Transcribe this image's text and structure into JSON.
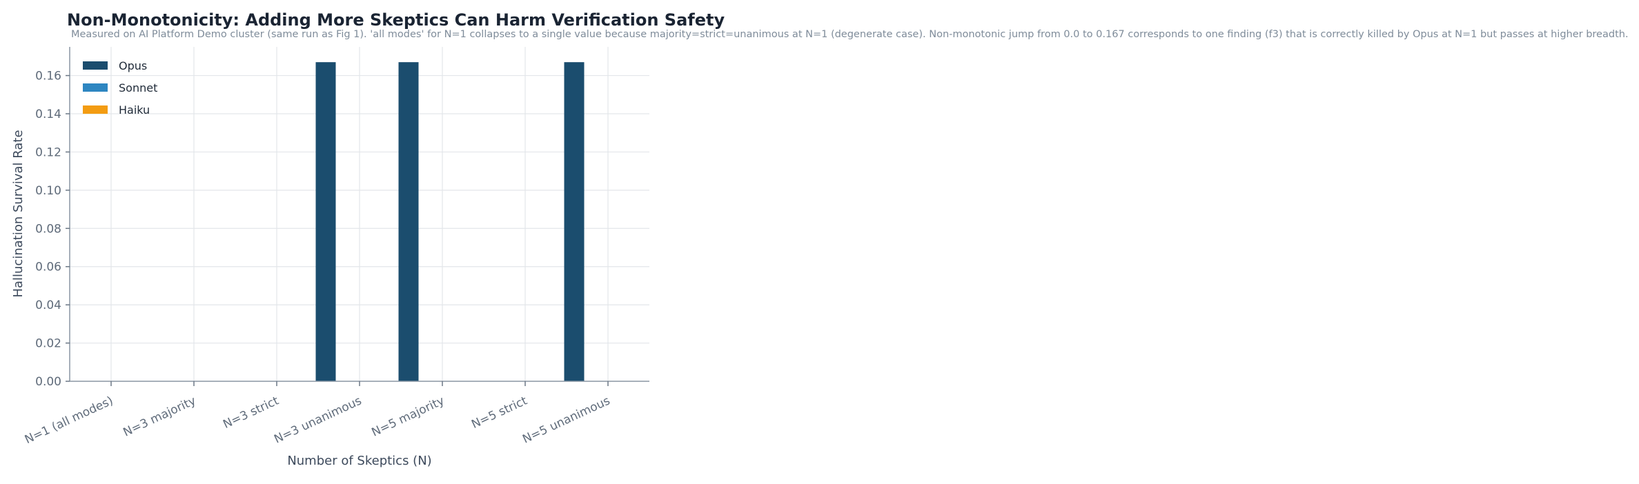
{
  "chart_data": {
    "type": "bar",
    "title": "Non-Monotonicity: Adding More Skeptics Can Harm Verification Safety",
    "subtitle": "Measured on AI Platform Demo cluster (same run as Fig 1). 'all modes' for N=1 collapses to a single value because majority=strict=unanimous at N=1 (degenerate case). Non-monotonic jump from 0.0 to 0.167 corresponds to one finding (f3) that is correctly killed by Opus at N=1 but passes at higher breadth.",
    "xlabel": "Number of Skeptics (N)",
    "ylabel": "Hallucination Survival Rate",
    "categories": [
      "N=1 (all modes)",
      "N=3 majority",
      "N=3 strict",
      "N=3 unanimous",
      "N=5 majority",
      "N=5 strict",
      "N=5 unanimous"
    ],
    "series": [
      {
        "name": "Opus",
        "color": "#1b4d6e",
        "values": [
          0.0,
          0.0,
          0.0,
          0.167,
          0.167,
          0.0,
          0.167
        ]
      },
      {
        "name": "Sonnet",
        "color": "#2e86c1",
        "values": [
          0.0,
          0.0,
          0.0,
          0.0,
          0.0,
          0.0,
          0.0
        ]
      },
      {
        "name": "Haiku",
        "color": "#f39c12",
        "values": [
          0.0,
          0.0,
          0.0,
          0.0,
          0.0,
          0.0,
          0.0
        ]
      }
    ],
    "yticks": [
      "0.00",
      "0.02",
      "0.04",
      "0.06",
      "0.08",
      "0.10",
      "0.12",
      "0.14",
      "0.16"
    ],
    "ylim": [
      0,
      0.175
    ],
    "grid": true,
    "legend_position": "top-left"
  }
}
